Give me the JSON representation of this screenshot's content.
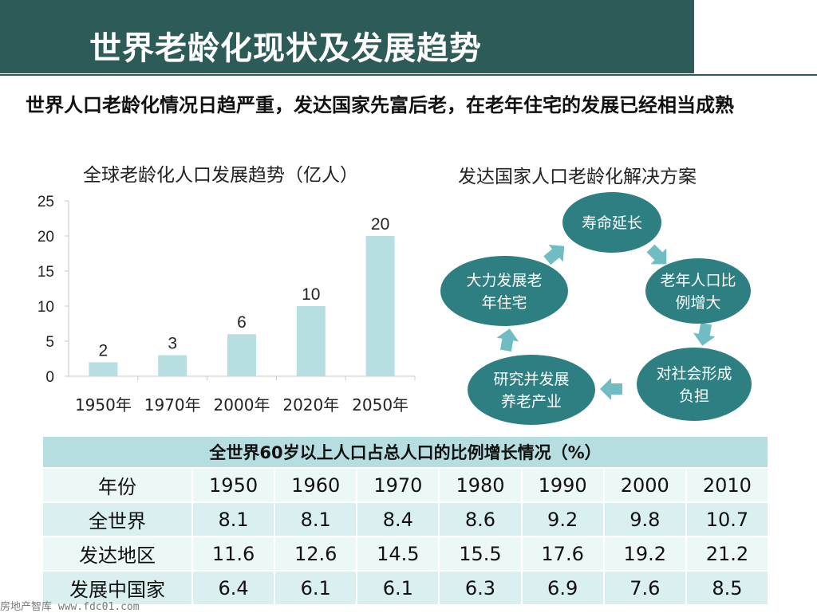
{
  "header": {
    "title": "世界老龄化现状及发展趋势"
  },
  "intro": {
    "text": "世界人口老龄化情况日趋严重，发达国家先富后老，在老年住宅的发展已经相当成熟"
  },
  "chart_heading": "全球老龄化人口发展趋势（亿人）",
  "chart_data": {
    "type": "bar",
    "title": "全球老龄化人口发展趋势（亿人）",
    "categories": [
      "1950年",
      "1970年",
      "2000年",
      "2020年",
      "2050年"
    ],
    "values": [
      2,
      3,
      6,
      10,
      20
    ],
    "ylim": [
      0,
      25
    ],
    "yticks": [
      0,
      5,
      10,
      15,
      20,
      25
    ],
    "xlabel": "",
    "ylabel": "",
    "grid": false,
    "bar_color": "#b7dfe1"
  },
  "cycle": {
    "heading": "发达国家人口老龄化解决方案",
    "nodes": [
      {
        "lines": [
          "寿命延长"
        ]
      },
      {
        "lines": [
          "老年人口比",
          "例增大"
        ]
      },
      {
        "lines": [
          "对社会形成",
          "负担"
        ]
      },
      {
        "lines": [
          "研究并发展",
          "养老产业"
        ]
      },
      {
        "lines": [
          "大力发展老",
          "年住宅"
        ]
      }
    ],
    "node_color": "#2e7f82",
    "arrow_color": "#6fbcc2"
  },
  "table": {
    "caption": "全世界60岁以上人口占总人口的比例增长情况（%）",
    "header": [
      "年份",
      "1950",
      "1960",
      "1970",
      "1980",
      "1990",
      "2000",
      "2010"
    ],
    "rows": [
      [
        "全世界",
        "8.1",
        "8.1",
        "8.4",
        "8.6",
        "9.2",
        "9.8",
        "10.7"
      ],
      [
        "发达地区",
        "11.6",
        "12.6",
        "14.5",
        "15.5",
        "17.6",
        "19.2",
        "21.2"
      ],
      [
        "发展中国家",
        "6.4",
        "6.1",
        "6.1",
        "6.3",
        "6.9",
        "7.6",
        "8.5"
      ]
    ]
  },
  "watermark": "房地产智库 www.fdc01.com",
  "colors": {
    "primary": "#2d5b58",
    "table_head": "#b6dde0",
    "table_row": "#d9eff0"
  }
}
